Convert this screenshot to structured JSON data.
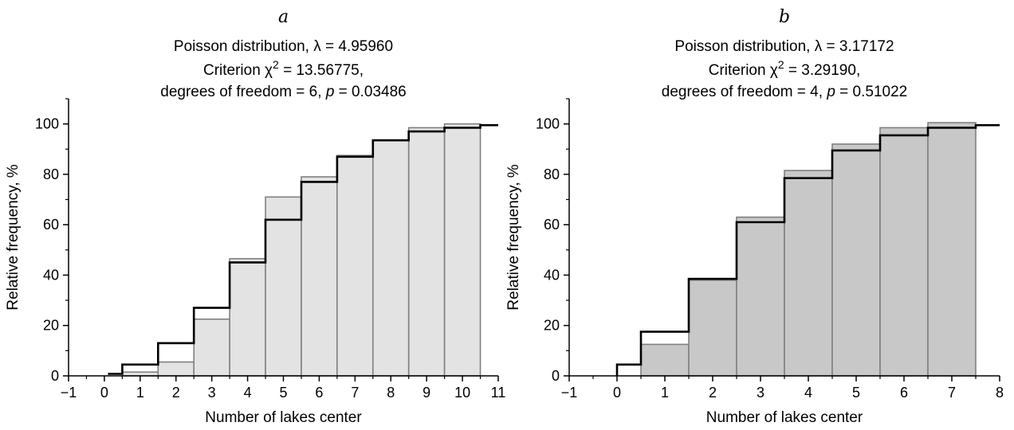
{
  "chart_data": [
    {
      "type": "bar",
      "panel": "a",
      "title_lines": [
        [
          "Poisson distribution, ",
          "λ",
          " = 4.95960"
        ],
        [
          "Criterion  ",
          "χ",
          "2",
          " = 13.56775,"
        ],
        [
          "degrees of freedom = 6, ",
          "p",
          " = 0.03486"
        ]
      ],
      "xlabel": "Number of lakes center",
      "ylabel": "Relative frequency, %",
      "xlim": [
        -1,
        11
      ],
      "ylim": [
        0,
        110
      ],
      "xticks": [
        "−1",
        "0",
        "1",
        "2",
        "3",
        "4",
        "5",
        "6",
        "7",
        "8",
        "9",
        "10",
        "11"
      ],
      "yticks": [
        "0",
        "20",
        "40",
        "60",
        "80",
        "100"
      ],
      "bar_color": "#e3e3e3",
      "bars": {
        "categories": [
          1,
          2,
          3,
          4,
          5,
          6,
          7,
          8,
          9,
          10
        ],
        "values": [
          1.5,
          5.5,
          22.5,
          46.5,
          71,
          79,
          87.5,
          93.5,
          98.5,
          100
        ]
      },
      "step_line": {
        "x": [
          0.1,
          0.5,
          0.5,
          1.5,
          1.5,
          2.5,
          2.5,
          3.5,
          3.5,
          4.5,
          4.5,
          5.5,
          5.5,
          6.5,
          6.5,
          7.5,
          7.5,
          8.5,
          8.5,
          9.5,
          9.5,
          10.5,
          10.5,
          11
        ],
        "y": [
          0.8,
          0.8,
          4.5,
          4.5,
          13,
          13,
          27,
          27,
          45,
          45,
          62,
          62,
          77,
          77,
          87,
          87,
          93.5,
          93.5,
          97,
          97,
          98.5,
          98.5,
          99.5,
          99.5
        ]
      }
    },
    {
      "type": "bar",
      "panel": "b",
      "title_lines": [
        [
          "Poisson distribution,  ",
          "λ",
          " = 3.17172"
        ],
        [
          "Criterion ",
          "χ",
          "2",
          " = 3.29190,"
        ],
        [
          "degrees of freedom = 4, ",
          "p",
          " = 0.51022"
        ]
      ],
      "xlabel": "Number of lakes center",
      "ylabel": "Relative frequency, %",
      "xlim": [
        -1,
        8
      ],
      "ylim": [
        0,
        110
      ],
      "xticks": [
        "−1",
        "0",
        "1",
        "2",
        "3",
        "4",
        "5",
        "6",
        "7",
        "8"
      ],
      "yticks": [
        "0",
        "20",
        "40",
        "60",
        "80",
        "100"
      ],
      "bar_color": "#c8c8c8",
      "bars": {
        "categories": [
          1,
          2,
          3,
          4,
          5,
          6,
          7
        ],
        "values": [
          12.5,
          38,
          63,
          81.5,
          92,
          98.5,
          100.5
        ]
      },
      "step_line": {
        "x": [
          0,
          0,
          0.5,
          0.5,
          1.5,
          1.5,
          2.5,
          2.5,
          3.5,
          3.5,
          4.5,
          4.5,
          5.5,
          5.5,
          6.5,
          6.5,
          7.5,
          7.5,
          8
        ],
        "y": [
          0,
          4.5,
          4.5,
          17.5,
          17.5,
          38.5,
          38.5,
          61,
          61,
          78.5,
          78.5,
          89.5,
          89.5,
          95.5,
          95.5,
          98.5,
          98.5,
          99.5,
          99.5
        ]
      }
    }
  ]
}
